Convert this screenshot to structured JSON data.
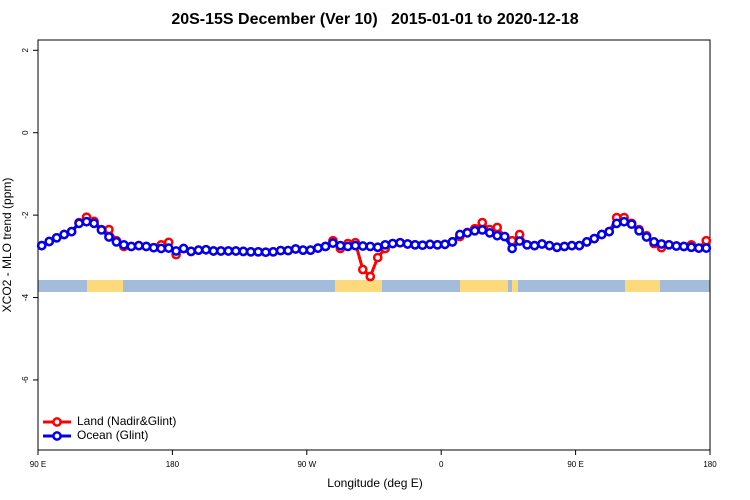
{
  "chart_data": {
    "type": "line",
    "title": "20S-15S December (Ver 10)   2015-01-01 to 2020-12-18",
    "x_label": "Longitude (deg E)",
    "y_label": "XCO2 - MLO trend (ppm)",
    "xlim": [
      90,
      540
    ],
    "ylim": [
      -7.7,
      2.25
    ],
    "xticks": [
      {
        "value": 90,
        "label": "90 E"
      },
      180,
      {
        "value": 270,
        "label": "90 W"
      },
      {
        "value": 360,
        "label": "0"
      },
      {
        "value": 450,
        "label": "90 E"
      },
      {
        "value": 540,
        "label": "180"
      }
    ],
    "yticks": [
      2,
      0,
      -2,
      -4,
      -6
    ],
    "legend": "bottom-left",
    "x": [
      92.5,
      97.5,
      102.5,
      107.5,
      112.5,
      117.5,
      122.5,
      127.5,
      132.5,
      137.5,
      142.5,
      147.5,
      152.5,
      157.5,
      162.5,
      167.5,
      172.5,
      177.5,
      182.5,
      187.5,
      192.5,
      197.5,
      202.5,
      207.5,
      212.5,
      217.5,
      222.5,
      227.5,
      232.5,
      237.5,
      242.5,
      247.5,
      252.5,
      257.5,
      262.5,
      267.5,
      272.5,
      277.5,
      282.5,
      287.5,
      292.5,
      297.5,
      302.5,
      307.5,
      312.5,
      317.5,
      322.5,
      327.5,
      332.5,
      337.5,
      342.5,
      347.5,
      352.5,
      357.5,
      362.5,
      367.5,
      372.5,
      377.5,
      382.5,
      387.5,
      392.5,
      397.5,
      402.5,
      407.5,
      412.5,
      417.5,
      422.5,
      427.5,
      432.5,
      437.5,
      442.5,
      447.5,
      452.5,
      457.5,
      462.5,
      467.5,
      472.5,
      477.5,
      482.5,
      487.5,
      492.5,
      497.5,
      502.5,
      507.5,
      512.5,
      517.5,
      522.5,
      527.5,
      532.5,
      537.5
    ],
    "series": [
      {
        "name": "Land (Nadir&Glint)",
        "color": "#ff0000",
        "values": [
          -2.74,
          -2.64,
          -2.55,
          -2.47,
          -2.4,
          -2.18,
          -2.05,
          -2.15,
          -2.35,
          -2.35,
          -2.62,
          -2.76,
          -2.76,
          -2.74,
          -2.76,
          -2.79,
          -2.72,
          -2.66,
          -2.96,
          -2.81,
          -2.88,
          -2.85,
          -2.84,
          -2.87,
          -2.87,
          -2.87,
          -2.87,
          -2.88,
          -2.89,
          -2.89,
          -2.9,
          -2.89,
          -2.86,
          -2.86,
          -2.82,
          -2.85,
          -2.85,
          -2.8,
          -2.76,
          -2.62,
          -2.81,
          -2.69,
          -2.67,
          -3.32,
          -3.49,
          -3.03,
          -2.81,
          -2.69,
          -2.67,
          -2.7,
          -2.72,
          -2.73,
          -2.71,
          -2.72,
          -2.71,
          -2.65,
          -2.52,
          -2.42,
          -2.33,
          -2.18,
          -2.35,
          -2.3,
          -2.52,
          -2.62,
          -2.47,
          -2.72,
          -2.74,
          -2.7,
          -2.74,
          -2.78,
          -2.76,
          -2.74,
          -2.74,
          -2.65,
          -2.57,
          -2.47,
          -2.4,
          -2.06,
          -2.06,
          -2.2,
          -2.35,
          -2.5,
          -2.69,
          -2.79,
          -2.72,
          -2.75,
          -2.76,
          -2.72,
          -2.8,
          -2.62
        ]
      },
      {
        "name": "Ocean (Glint)",
        "color": "#0000ee",
        "values": [
          -2.74,
          -2.64,
          -2.55,
          -2.47,
          -2.4,
          -2.2,
          -2.16,
          -2.2,
          -2.36,
          -2.53,
          -2.65,
          -2.72,
          -2.76,
          -2.74,
          -2.76,
          -2.79,
          -2.81,
          -2.8,
          -2.87,
          -2.81,
          -2.88,
          -2.85,
          -2.84,
          -2.87,
          -2.87,
          -2.87,
          -2.87,
          -2.88,
          -2.89,
          -2.89,
          -2.9,
          -2.89,
          -2.86,
          -2.86,
          -2.82,
          -2.85,
          -2.85,
          -2.8,
          -2.76,
          -2.68,
          -2.74,
          -2.76,
          -2.74,
          -2.75,
          -2.76,
          -2.78,
          -2.72,
          -2.69,
          -2.67,
          -2.7,
          -2.72,
          -2.73,
          -2.71,
          -2.72,
          -2.71,
          -2.65,
          -2.47,
          -2.43,
          -2.38,
          -2.36,
          -2.43,
          -2.5,
          -2.52,
          -2.81,
          -2.63,
          -2.72,
          -2.74,
          -2.7,
          -2.74,
          -2.78,
          -2.76,
          -2.74,
          -2.74,
          -2.65,
          -2.57,
          -2.47,
          -2.4,
          -2.2,
          -2.16,
          -2.22,
          -2.38,
          -2.53,
          -2.65,
          -2.7,
          -2.72,
          -2.75,
          -2.76,
          -2.78,
          -2.8,
          -2.8
        ]
      }
    ]
  }
}
